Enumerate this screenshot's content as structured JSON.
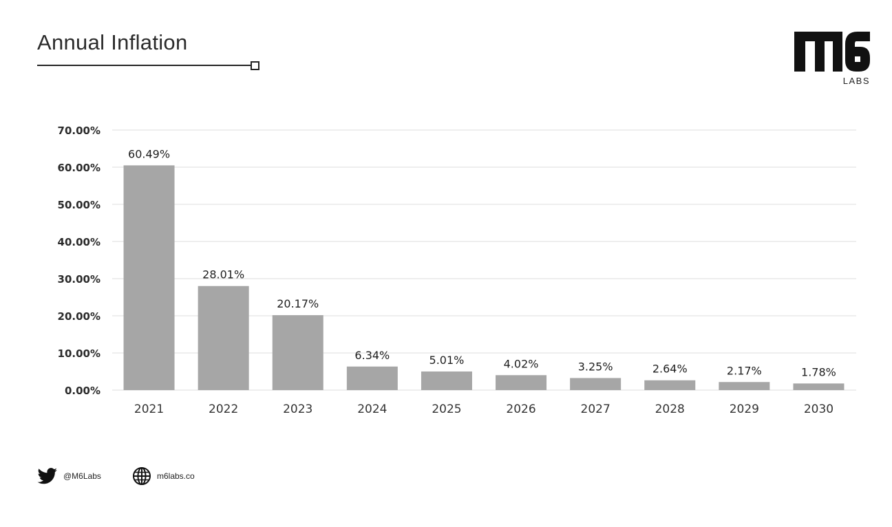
{
  "header": {
    "title": "Annual Inflation",
    "logo_mark": "M6",
    "logo_sub": "LABS"
  },
  "footer": {
    "twitter_handle": "@M6Labs",
    "website": "m6labs.co",
    "icons": [
      "twitter-icon",
      "globe-icon"
    ]
  },
  "colors": {
    "bar": "#a6a6a6",
    "grid": "#dcdcdc",
    "text": "#1e1e1e"
  },
  "chart_data": {
    "type": "bar",
    "title": "Annual Inflation",
    "categories": [
      "2021",
      "2022",
      "2023",
      "2024",
      "2025",
      "2026",
      "2027",
      "2028",
      "2029",
      "2030"
    ],
    "values": [
      60.49,
      28.01,
      20.17,
      6.34,
      5.01,
      4.02,
      3.25,
      2.64,
      2.17,
      1.78
    ],
    "data_labels": [
      "60.49%",
      "28.01%",
      "20.17%",
      "6.34%",
      "5.01%",
      "4.02%",
      "3.25%",
      "2.64%",
      "2.17%",
      "1.78%"
    ],
    "yticks": [
      0,
      10,
      20,
      30,
      40,
      50,
      60,
      70
    ],
    "ytick_labels": [
      "0.00%",
      "10.00%",
      "20.00%",
      "30.00%",
      "40.00%",
      "50.00%",
      "60.00%",
      "70.00%"
    ],
    "ylim": [
      0,
      70
    ],
    "grid": true,
    "xlabel": "",
    "ylabel": ""
  }
}
